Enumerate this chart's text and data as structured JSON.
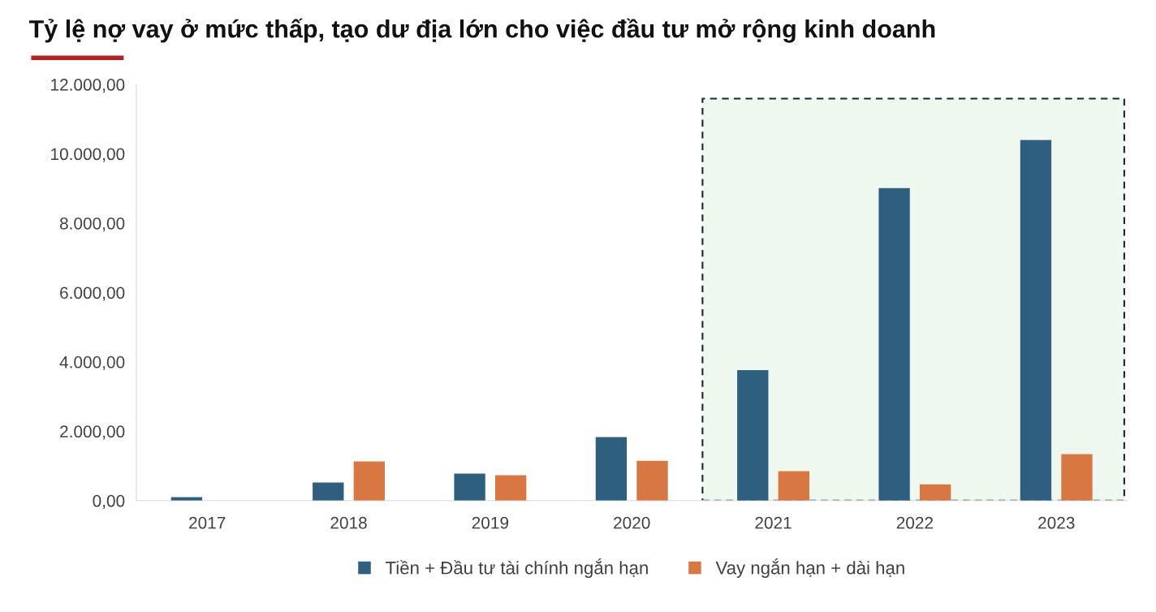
{
  "chart_data": {
    "type": "bar",
    "title": "Tỷ lệ nợ vay ở mức thấp, tạo dư địa lớn cho việc đầu tư mở rộng kinh doanh",
    "categories": [
      "2017",
      "2018",
      "2019",
      "2020",
      "2021",
      "2022",
      "2023"
    ],
    "series": [
      {
        "name": "Tiền + Đầu tư tài chính ngắn hạn",
        "color": "#2e5f7f",
        "values": [
          100,
          520,
          780,
          1830,
          3760,
          9010,
          10400
        ]
      },
      {
        "name": "Vay ngắn hạn + dài hạn",
        "color": "#d97742",
        "values": [
          null,
          1130,
          730,
          1150,
          850,
          470,
          1340
        ]
      }
    ],
    "ylim": [
      0,
      12000
    ],
    "yticks": [
      {
        "value": 0,
        "label": "0,00"
      },
      {
        "value": 2000,
        "label": "2.000,00"
      },
      {
        "value": 4000,
        "label": "4.000,00"
      },
      {
        "value": 6000,
        "label": "6.000,00"
      },
      {
        "value": 8000,
        "label": "8.000,00"
      },
      {
        "value": 10000,
        "label": "10.000,00"
      },
      {
        "value": 12000,
        "label": "12.000,00"
      }
    ],
    "bands": [
      {
        "axis": "x",
        "from": "2021",
        "to": "2023",
        "color": "#eef8ee"
      }
    ],
    "grid": false,
    "legend": "bottom"
  }
}
